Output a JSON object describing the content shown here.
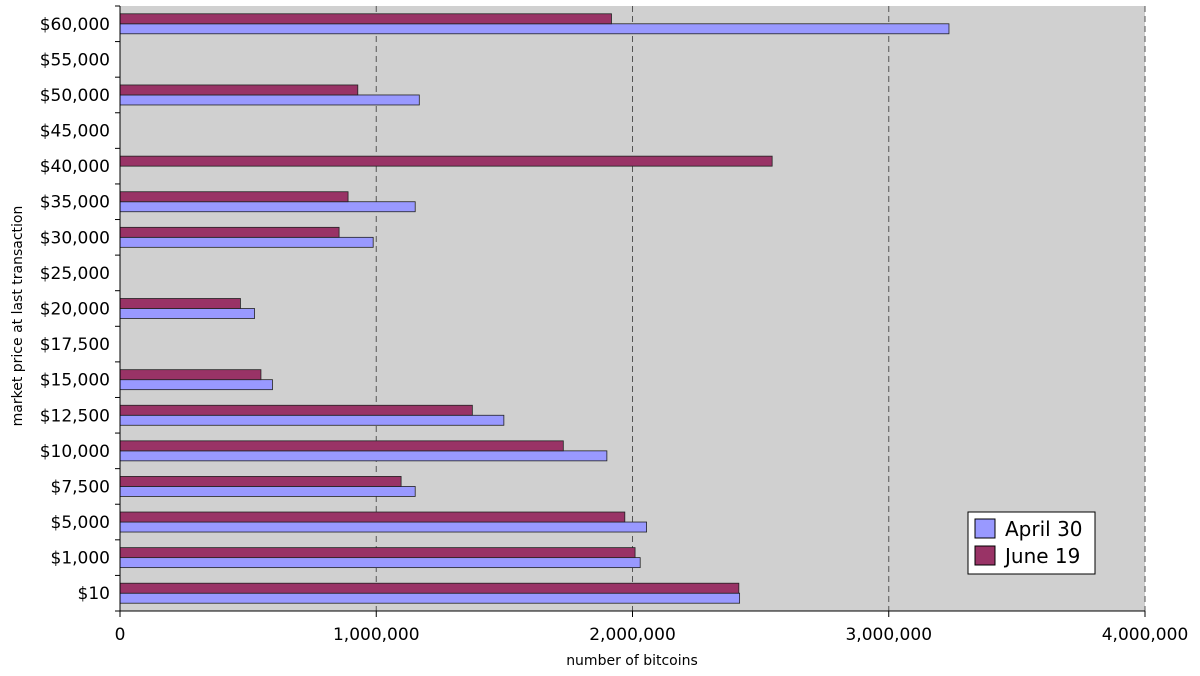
{
  "chart_data": {
    "type": "bar",
    "orientation": "horizontal",
    "title": "",
    "xlabel": "number of bitcoins",
    "ylabel": "market price at last transaction",
    "xlim": [
      0,
      4000000
    ],
    "x_ticks": [
      {
        "value": 0,
        "label": "0"
      },
      {
        "value": 1000000,
        "label": "1,000,000"
      },
      {
        "value": 2000000,
        "label": "2,000,000"
      },
      {
        "value": 3000000,
        "label": "3,000,000"
      },
      {
        "value": 4000000,
        "label": "4,000,000"
      }
    ],
    "categories": [
      "$60,000",
      "$55,000",
      "$50,000",
      "$45,000",
      "$40,000",
      "$35,000",
      "$30,000",
      "$25,000",
      "$20,000",
      "$17,500",
      "$15,000",
      "$12,500",
      "$10,000",
      "$7,500",
      "$5,000",
      "$1,000",
      "$10"
    ],
    "series": [
      {
        "name": "April 30",
        "color": "#9999ff",
        "values": [
          3235000,
          null,
          1168000,
          null,
          0,
          1152000,
          988000,
          null,
          525000,
          null,
          595000,
          1498000,
          1900000,
          1152000,
          2055000,
          2030000,
          2418000
        ]
      },
      {
        "name": "June 19",
        "color": "#993366",
        "values": [
          1918000,
          null,
          928000,
          null,
          2545000,
          890000,
          855000,
          null,
          470000,
          null,
          550000,
          1375000,
          1730000,
          1097000,
          1970000,
          2010000,
          2415000
        ]
      }
    ],
    "grid": "vertical dashed at major x ticks",
    "plot_background": "#d0d0d0",
    "legend": {
      "position": "bottom-right",
      "entries": [
        "April 30",
        "June 19"
      ]
    }
  }
}
